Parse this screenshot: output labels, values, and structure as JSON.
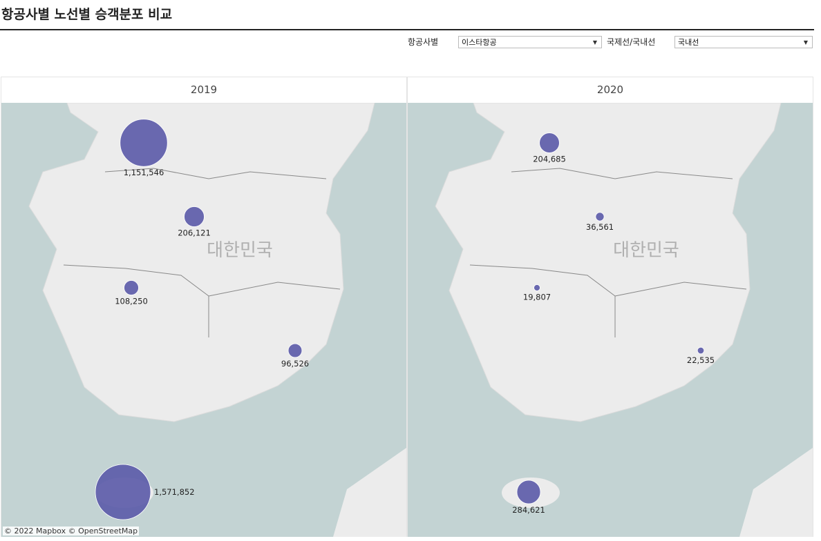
{
  "title": "항공사별 노선별 승객분포 비교",
  "filters": [
    {
      "label": "항공사별",
      "value": "이스타항공"
    },
    {
      "label": "국제선/국내선",
      "value": "국내선"
    }
  ],
  "map_label": "대한민국",
  "attribution": "© 2022 Mapbox  © OpenStreetMap",
  "colors": {
    "bubble": "#5b5aa8",
    "water": "#c3d3d3",
    "land": "#ececec"
  },
  "panels": [
    {
      "year": "2019",
      "values": [
        "1,151,546",
        "206,121",
        "108,250",
        "96,526",
        "1,571,852"
      ]
    },
    {
      "year": "2020",
      "values": [
        "204,685",
        "36,561",
        "19,807",
        "22,535",
        "284,621"
      ]
    }
  ]
}
